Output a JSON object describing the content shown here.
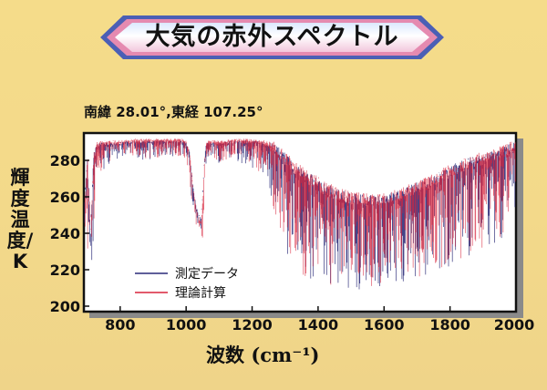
{
  "title": "大気の赤外スペクトル",
  "location": "南緯 28.01°,東経 107.25°",
  "colors": {
    "background": "#f4da8a",
    "measured": "#2a2a78",
    "theory": "#d8243c",
    "banner_pink": "#e58ab0",
    "banner_blue": "#5a6fc0"
  },
  "chart_data": {
    "type": "line",
    "title": "",
    "xlabel": "波数",
    "xlabel_unit": "(cm⁻¹)",
    "ylabel": "輝度温度/K",
    "xlim": [
      690,
      2000
    ],
    "ylim": [
      197,
      295
    ],
    "xticks": [
      800,
      1000,
      1200,
      1400,
      1600,
      1800,
      2000
    ],
    "yticks": [
      200,
      220,
      240,
      260,
      280
    ],
    "grid": false,
    "legend_position": "bottom-left",
    "series": [
      {
        "name": "測定データ",
        "color": "#2a2a78",
        "envelope": {
          "x": [
            690,
            700,
            710,
            715,
            720,
            730,
            740,
            760,
            800,
            850,
            900,
            950,
            990,
            1000,
            1010,
            1020,
            1030,
            1040,
            1045,
            1050,
            1055,
            1060,
            1065,
            1070,
            1080,
            1100,
            1150,
            1200,
            1250,
            1270,
            1300,
            1350,
            1400,
            1450,
            1500,
            1550,
            1600,
            1650,
            1700,
            1750,
            1800,
            1850,
            1900,
            1950,
            1980,
            2000
          ],
          "upper": [
            250,
            285,
            240,
            265,
            285,
            290,
            290,
            290,
            290,
            291,
            291,
            291,
            291,
            290,
            285,
            268,
            255,
            250,
            250,
            262,
            280,
            289,
            290,
            290,
            290,
            290,
            291,
            291,
            290,
            289,
            284,
            276,
            270,
            265,
            262,
            261,
            261,
            264,
            268,
            272,
            277,
            281,
            284,
            287,
            289,
            291
          ],
          "lower": [
            215,
            230,
            222,
            222,
            240,
            262,
            272,
            276,
            280,
            280,
            280,
            282,
            281,
            276,
            268,
            254,
            245,
            236,
            232,
            238,
            262,
            276,
            278,
            279,
            280,
            278,
            279,
            276,
            268,
            246,
            228,
            216,
            210,
            209,
            209,
            208,
            210,
            212,
            214,
            218,
            221,
            226,
            230,
            236,
            239,
            244
          ]
        }
      },
      {
        "name": "理論計算",
        "color": "#d8243c",
        "envelope": {
          "x": [
            690,
            700,
            710,
            715,
            720,
            730,
            740,
            760,
            800,
            850,
            900,
            950,
            990,
            1000,
            1010,
            1020,
            1030,
            1040,
            1045,
            1050,
            1055,
            1060,
            1065,
            1070,
            1080,
            1100,
            1150,
            1200,
            1250,
            1270,
            1300,
            1350,
            1400,
            1450,
            1500,
            1550,
            1600,
            1650,
            1700,
            1750,
            1800,
            1850,
            1900,
            1950,
            1980,
            2000
          ],
          "upper": [
            252,
            285,
            242,
            266,
            286,
            291,
            291,
            291,
            291,
            292,
            292,
            292,
            292,
            291,
            284,
            266,
            253,
            248,
            247,
            260,
            281,
            290,
            291,
            291,
            291,
            291,
            292,
            292,
            291,
            290,
            285,
            277,
            271,
            266,
            263,
            262,
            262,
            265,
            269,
            273,
            278,
            282,
            285,
            288,
            290,
            292
          ],
          "lower": [
            217,
            232,
            224,
            224,
            242,
            264,
            274,
            278,
            281,
            281,
            281,
            283,
            282,
            277,
            266,
            252,
            242,
            232,
            228,
            235,
            262,
            277,
            279,
            280,
            281,
            279,
            280,
            277,
            269,
            247,
            229,
            217,
            211,
            210,
            210,
            209,
            211,
            213,
            215,
            219,
            222,
            227,
            231,
            237,
            240,
            245
          ]
        }
      }
    ]
  }
}
